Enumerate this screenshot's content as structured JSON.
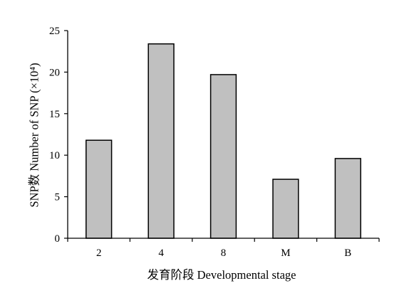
{
  "chart_data": {
    "type": "bar",
    "categories": [
      "2",
      "4",
      "8",
      "M",
      "B"
    ],
    "values": [
      11.8,
      23.4,
      19.7,
      7.1,
      9.6
    ],
    "xlabel": "发育阶段 Developmental stage",
    "ylabel": "SNP数 Number of SNP (×10⁴)",
    "ylim": [
      0,
      25
    ],
    "yticks": [
      0,
      5,
      10,
      15,
      20,
      25
    ],
    "grid": false,
    "bar_color": "#c0c0c0",
    "bar_edge_color": "#000000"
  }
}
